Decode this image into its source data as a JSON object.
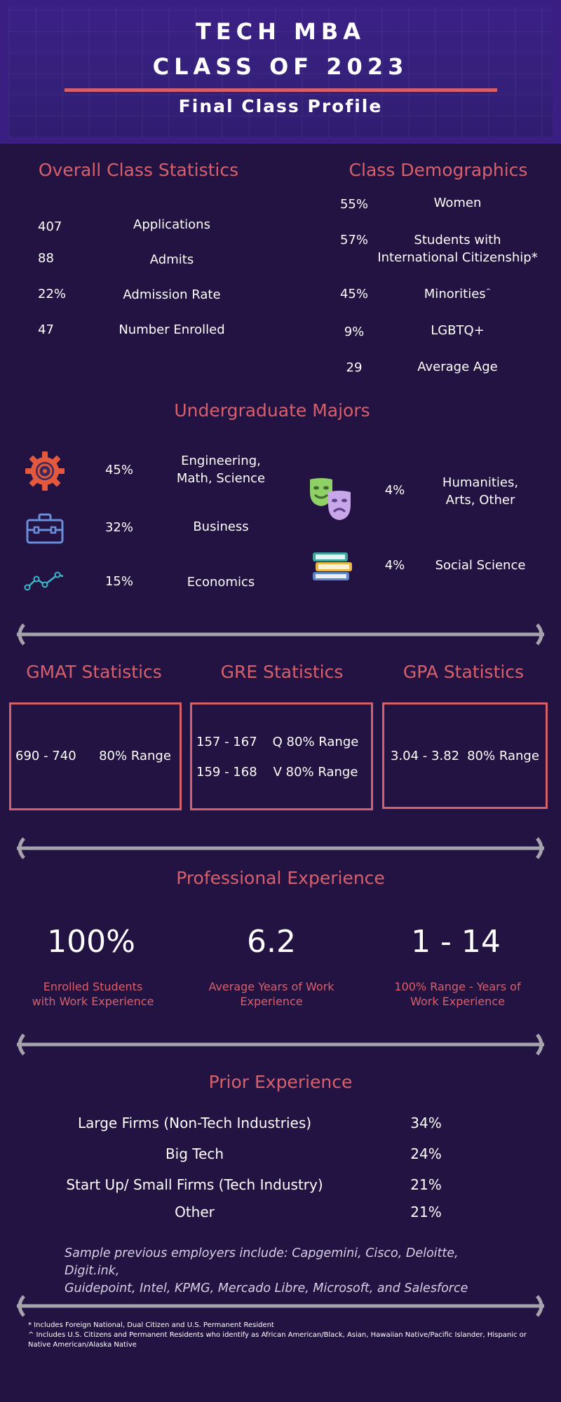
{
  "header": {
    "title_line1": "TECH MBA",
    "title_line2": "CLASS OF 2023",
    "subtitle": "Final Class Profile"
  },
  "overall": {
    "title": "Overall Class Statistics",
    "rows": [
      {
        "value": "407",
        "label": "Applications"
      },
      {
        "value": "88",
        "label": "Admits"
      },
      {
        "value": "22%",
        "label": "Admission Rate"
      },
      {
        "value": "47",
        "label": "Number Enrolled"
      }
    ]
  },
  "demographics": {
    "title": "Class Demographics",
    "rows": [
      {
        "value": "55%",
        "label_line1": "Women",
        "label_line2": ""
      },
      {
        "value": "57%",
        "label_line1": "Students with",
        "label_line2": "International Citizenship*"
      },
      {
        "value": "45%",
        "label_line1": "Minorities",
        "label_line2": "",
        "sup": "^"
      },
      {
        "value": "9%",
        "label_line1": "LGBTQ+",
        "label_line2": ""
      },
      {
        "value": "29",
        "label_line1": "Average Age",
        "label_line2": ""
      }
    ]
  },
  "majors": {
    "title": "Undergraduate Majors",
    "left": [
      {
        "icon": "gear-icon",
        "value": "45%",
        "label_line1": "Engineering,",
        "label_line2": "Math, Science"
      },
      {
        "icon": "briefcase-icon",
        "value": "32%",
        "label_line1": "Business",
        "label_line2": ""
      },
      {
        "icon": "line-graph-icon",
        "value": "15%",
        "label_line1": "Economics",
        "label_line2": ""
      }
    ],
    "right": [
      {
        "icon": "theater-masks-icon",
        "value": "4%",
        "label_line1": "Humanities,",
        "label_line2": "Arts, Other"
      },
      {
        "icon": "books-icon",
        "value": "4%",
        "label_line1": "Social Science",
        "label_line2": ""
      }
    ]
  },
  "tests": {
    "gmat": {
      "title": "GMAT Statistics",
      "value": "690 - 740",
      "label": "80% Range"
    },
    "gre": {
      "title": "GRE Statistics",
      "rows": [
        {
          "value": "157 - 167",
          "label": "Q 80% Range"
        },
        {
          "value": "159 - 168",
          "label": "V 80% Range"
        }
      ]
    },
    "gpa": {
      "title": "GPA Statistics",
      "value": "3.04 - 3.82",
      "label": "80% Range"
    }
  },
  "professional": {
    "title": "Professional Experience",
    "items": [
      {
        "value": "100%",
        "caption_line1": "Enrolled Students",
        "caption_line2": "with Work Experience"
      },
      {
        "value": "6.2",
        "caption_line1": "Average Years of Work",
        "caption_line2": "Experience"
      },
      {
        "value": "1 - 14",
        "caption_line1": "100% Range - Years of",
        "caption_line2": "Work Experience"
      }
    ]
  },
  "prior": {
    "title": "Prior Experience",
    "rows": [
      {
        "label": "Large Firms (Non-Tech Industries)",
        "value": "34%"
      },
      {
        "label": "Big Tech",
        "value": "24%"
      },
      {
        "label": "Start Up/ Small Firms (Tech Industry)",
        "value": "21%"
      },
      {
        "label": "Other",
        "value": "21%"
      }
    ],
    "sample_line1": "Sample previous employers include: Capgemini, Cisco, Deloitte, Digit.ink,",
    "sample_line2": "Guidepoint, Intel, KPMG, Mercado Libre, Microsoft, and Salesforce"
  },
  "footnotes": {
    "note1": "* Includes Foreign National, Dual Citizen and U.S. Permanent Resident",
    "note2": "^ Includes U.S. Citizens and Permanent Residents who identify as African American/Black, Asian, Hawaiian Native/Pacific Islander, Hispanic or Native American/Alaska Native"
  },
  "colors": {
    "background": "#221343",
    "header": "#3a1e82",
    "accent": "#d7606a",
    "connector": "#a7a3ad"
  }
}
